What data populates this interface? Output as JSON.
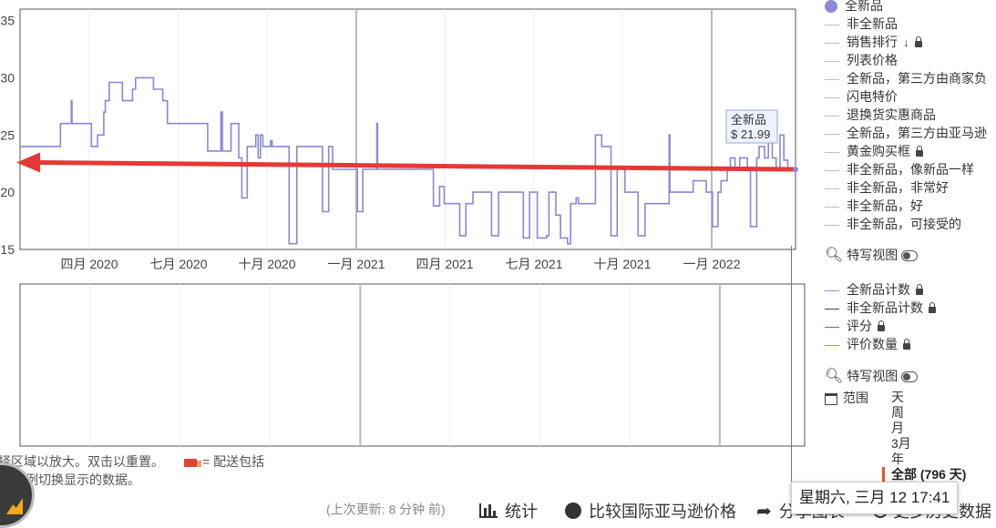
{
  "chart_data": {
    "type": "line",
    "y_ticks": [
      "35",
      "30",
      "25",
      "20",
      "15"
    ],
    "ylim": [
      15,
      36
    ],
    "x_ticks": [
      "四月 2020",
      "七月 2020",
      "十月 2020",
      "一月 2021",
      "四月 2021",
      "七月 2021",
      "十月 2021",
      "一月 2022"
    ],
    "series": [
      {
        "name": "全新品",
        "color": "#8888d8",
        "step_points": [
          [
            0,
            24
          ],
          [
            0.052,
            24
          ],
          [
            0.052,
            26
          ],
          [
            0.066,
            26
          ],
          [
            0.066,
            28
          ],
          [
            0.067,
            28
          ],
          [
            0.067,
            26
          ],
          [
            0.092,
            26
          ],
          [
            0.092,
            24
          ],
          [
            0.1,
            24
          ],
          [
            0.1,
            25
          ],
          [
            0.108,
            25
          ],
          [
            0.108,
            27
          ],
          [
            0.11,
            27
          ],
          [
            0.11,
            28
          ],
          [
            0.115,
            28
          ],
          [
            0.115,
            29.6
          ],
          [
            0.132,
            29.6
          ],
          [
            0.132,
            28
          ],
          [
            0.145,
            28
          ],
          [
            0.145,
            29
          ],
          [
            0.149,
            29
          ],
          [
            0.149,
            30
          ],
          [
            0.172,
            30
          ],
          [
            0.172,
            29
          ],
          [
            0.184,
            29
          ],
          [
            0.184,
            28
          ],
          [
            0.19,
            28
          ],
          [
            0.19,
            26
          ],
          [
            0.242,
            26
          ],
          [
            0.242,
            23.6
          ],
          [
            0.259,
            23.6
          ],
          [
            0.259,
            27
          ],
          [
            0.261,
            27
          ],
          [
            0.261,
            23.6
          ],
          [
            0.272,
            23.6
          ],
          [
            0.272,
            26
          ],
          [
            0.282,
            26
          ],
          [
            0.282,
            23
          ],
          [
            0.286,
            23
          ],
          [
            0.286,
            19.5
          ],
          [
            0.293,
            19.5
          ],
          [
            0.293,
            24
          ],
          [
            0.304,
            24
          ],
          [
            0.304,
            25
          ],
          [
            0.307,
            25
          ],
          [
            0.307,
            23
          ],
          [
            0.31,
            23
          ],
          [
            0.31,
            25
          ],
          [
            0.313,
            25
          ],
          [
            0.313,
            24
          ],
          [
            0.323,
            24
          ],
          [
            0.323,
            24.5
          ],
          [
            0.325,
            24.5
          ],
          [
            0.325,
            24
          ],
          [
            0.347,
            24
          ],
          [
            0.347,
            15.5
          ],
          [
            0.357,
            15.5
          ],
          [
            0.357,
            24
          ],
          [
            0.39,
            24
          ],
          [
            0.39,
            18.3
          ],
          [
            0.398,
            18.3
          ],
          [
            0.398,
            24
          ],
          [
            0.403,
            24
          ],
          [
            0.403,
            22
          ],
          [
            0.435,
            22
          ],
          [
            0.435,
            18.3
          ],
          [
            0.442,
            18.3
          ],
          [
            0.442,
            22
          ],
          [
            0.46,
            22
          ],
          [
            0.46,
            26
          ],
          [
            0.461,
            26
          ],
          [
            0.461,
            22
          ],
          [
            0.533,
            22
          ],
          [
            0.533,
            18.8
          ],
          [
            0.541,
            18.8
          ],
          [
            0.541,
            20.5
          ],
          [
            0.547,
            20.5
          ],
          [
            0.547,
            19
          ],
          [
            0.567,
            19
          ],
          [
            0.567,
            16.2
          ],
          [
            0.575,
            16.2
          ],
          [
            0.575,
            19
          ],
          [
            0.584,
            19
          ],
          [
            0.584,
            20
          ],
          [
            0.608,
            20
          ],
          [
            0.608,
            16.2
          ],
          [
            0.617,
            16.2
          ],
          [
            0.617,
            20
          ],
          [
            0.649,
            20
          ],
          [
            0.649,
            16
          ],
          [
            0.657,
            16
          ],
          [
            0.657,
            20
          ],
          [
            0.667,
            20
          ],
          [
            0.667,
            16
          ],
          [
            0.679,
            16
          ],
          [
            0.679,
            16.2
          ],
          [
            0.682,
            16.2
          ],
          [
            0.682,
            20
          ],
          [
            0.691,
            20
          ],
          [
            0.691,
            18
          ],
          [
            0.697,
            18
          ],
          [
            0.697,
            16
          ],
          [
            0.706,
            16
          ],
          [
            0.706,
            15.5
          ],
          [
            0.71,
            15.5
          ],
          [
            0.71,
            19
          ],
          [
            0.717,
            19
          ],
          [
            0.717,
            19.5
          ],
          [
            0.72,
            19.5
          ],
          [
            0.72,
            19
          ],
          [
            0.742,
            19
          ],
          [
            0.742,
            25
          ],
          [
            0.75,
            25
          ],
          [
            0.75,
            24
          ],
          [
            0.762,
            24
          ],
          [
            0.762,
            16.2
          ],
          [
            0.77,
            16.2
          ],
          [
            0.77,
            22
          ],
          [
            0.78,
            22
          ],
          [
            0.78,
            20
          ],
          [
            0.797,
            20
          ],
          [
            0.797,
            16.2
          ],
          [
            0.806,
            16.2
          ],
          [
            0.806,
            19
          ],
          [
            0.837,
            19
          ],
          [
            0.837,
            25
          ],
          [
            0.838,
            25
          ],
          [
            0.838,
            20
          ],
          [
            0.868,
            20
          ],
          [
            0.868,
            21
          ],
          [
            0.885,
            21
          ],
          [
            0.885,
            20
          ],
          [
            0.893,
            20
          ],
          [
            0.893,
            17
          ],
          [
            0.9,
            17
          ],
          [
            0.9,
            20
          ],
          [
            0.904,
            20
          ],
          [
            0.904,
            21
          ],
          [
            0.912,
            21
          ],
          [
            0.912,
            22
          ],
          [
            0.916,
            22
          ],
          [
            0.916,
            23
          ],
          [
            0.922,
            23
          ],
          [
            0.922,
            22
          ],
          [
            0.928,
            22
          ],
          [
            0.928,
            23
          ],
          [
            0.938,
            23
          ],
          [
            0.938,
            22
          ],
          [
            0.942,
            22
          ],
          [
            0.942,
            17
          ],
          [
            0.95,
            17
          ],
          [
            0.95,
            23
          ],
          [
            0.953,
            23
          ],
          [
            0.953,
            24
          ],
          [
            0.96,
            24
          ],
          [
            0.96,
            23
          ],
          [
            0.965,
            23
          ],
          [
            0.965,
            25
          ],
          [
            0.97,
            25
          ],
          [
            0.97,
            23
          ],
          [
            0.975,
            23
          ],
          [
            0.975,
            22
          ],
          [
            0.98,
            22
          ],
          [
            0.98,
            25
          ],
          [
            0.985,
            25
          ],
          [
            0.985,
            22.8
          ],
          [
            0.99,
            22.8
          ],
          [
            0.99,
            21.99
          ],
          [
            1,
            21.99
          ]
        ]
      }
    ],
    "tooltip": {
      "label": "全新品",
      "value": "$ 21.99"
    },
    "annotation_arrow": {
      "color": "#e53935",
      "from": [
        1.0,
        22.0
      ],
      "to": [
        0.0,
        22.6
      ]
    },
    "lower_panel": {
      "series": []
    }
  },
  "legend_top": [
    {
      "label": "全新品",
      "type": "dot",
      "color": "#8a8adb",
      "lock": false,
      "extra": ""
    },
    {
      "label": "非全新品",
      "type": "line",
      "color": "#bbbbbb",
      "lock": false,
      "extra": ""
    },
    {
      "label": "销售排行",
      "type": "line",
      "color": "#bbbbbb",
      "lock": true,
      "extra": "sort-icon"
    },
    {
      "label": "列表价格",
      "type": "line",
      "color": "#bbbbbb",
      "lock": false,
      "extra": ""
    },
    {
      "label": "全新品，第三方由商家负",
      "type": "line",
      "color": "#bbbbbb",
      "lock": false,
      "extra": ""
    },
    {
      "label": "闪电特价",
      "type": "line",
      "color": "#bbbbbb",
      "lock": false,
      "extra": ""
    },
    {
      "label": "退换货实惠商品",
      "type": "line",
      "color": "#bbbbbb",
      "lock": false,
      "extra": ""
    },
    {
      "label": "全新品，第三方由亚马逊",
      "type": "line",
      "color": "#bbbbbb",
      "lock": false,
      "extra": ""
    },
    {
      "label": "黄金购买框",
      "type": "line",
      "color": "#bbbbbb",
      "lock": true,
      "extra": ""
    },
    {
      "label": "非全新品，像新品一样",
      "type": "line",
      "color": "#bbbbbb",
      "lock": false,
      "extra": ""
    },
    {
      "label": "非全新品，非常好",
      "type": "line",
      "color": "#bbbbbb",
      "lock": false,
      "extra": ""
    },
    {
      "label": "非全新品，好",
      "type": "line",
      "color": "#bbbbbb",
      "lock": false,
      "extra": ""
    },
    {
      "label": "非全新品，可接受的",
      "type": "line",
      "color": "#bbbbbb",
      "lock": false,
      "extra": ""
    }
  ],
  "zoom_label": "特写视图",
  "legend_bottom": [
    {
      "label": "全新品计数",
      "color": "#8a8adb",
      "lock": true
    },
    {
      "label": "非全新品计数",
      "color": "#444444",
      "lock": true
    },
    {
      "label": "评分",
      "color": "#2a8a7a",
      "lock": true
    },
    {
      "label": "评价数量",
      "color": "#9aaa33",
      "lock": true
    }
  ],
  "range": {
    "label": "范围",
    "options": [
      "天",
      "周",
      "月",
      "3月",
      "年"
    ],
    "selected": "全部 (796 天)",
    "selected_color": "#e8551f"
  },
  "hints": {
    "line1": "择区域以放大。双击以重置。",
    "delivery": "= 配送包括",
    "line2": "击图例切换显示的数据。"
  },
  "footer": {
    "last_update": "(上次更新:  8 分钟 前)",
    "stats": "统计",
    "compare": "比较国际亚马逊价格",
    "share": "分享图表",
    "more": "更多历史数据"
  },
  "date_tooltip": "星期六, 三月 12 17:41"
}
